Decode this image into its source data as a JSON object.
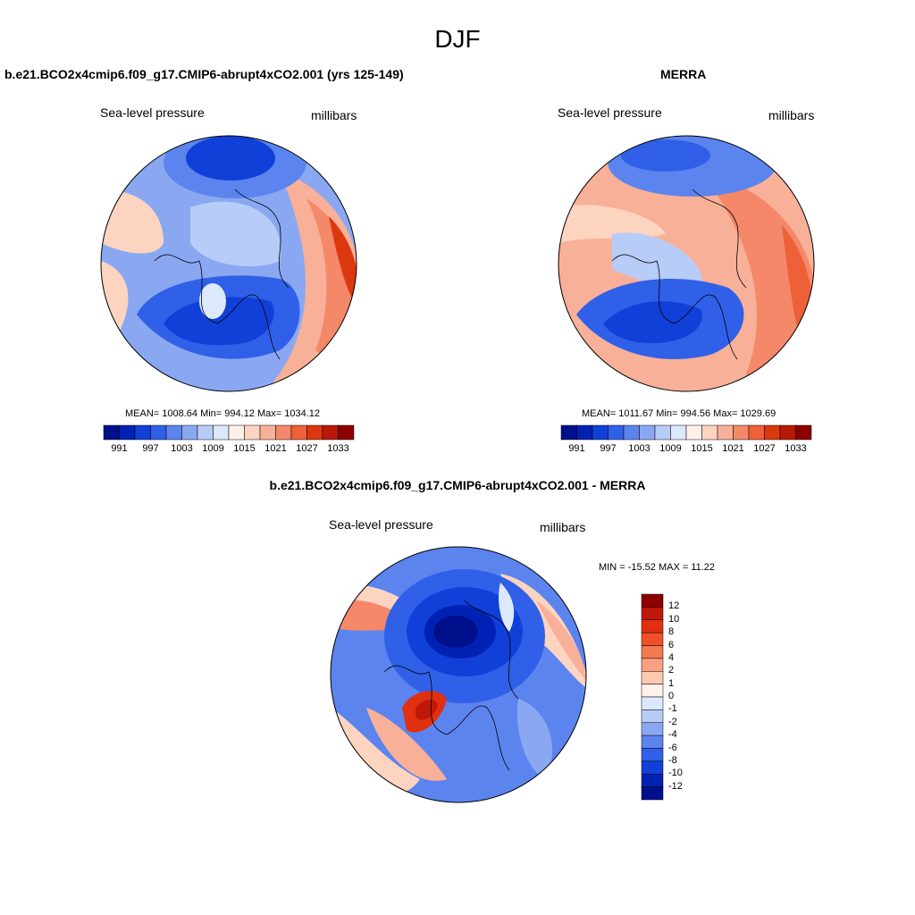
{
  "figure": {
    "title": "DJF"
  },
  "panels": [
    {
      "title": "b.e21.BCO2x4cmip6.f09_g17.CMIP6-abrupt4xCO2.001 (yrs 125-149)",
      "left_label": "Sea-level pressure",
      "right_label": "millibars",
      "stats": "MEAN= 1008.64  Min= 994.12  Max= 1034.12"
    },
    {
      "title": "MERRA",
      "left_label": "Sea-level pressure",
      "right_label": "millibars",
      "stats": "MEAN= 1011.67  Min= 994.56  Max= 1029.69"
    },
    {
      "title": "b.e21.BCO2x4cmip6.f09_g17.CMIP6-abrupt4xCO2.001 - MERRA",
      "left_label": "Sea-level pressure",
      "right_label": "millibars",
      "stats": "MIN = -15.52 MAX =  11.22"
    }
  ],
  "colorbar_abs": {
    "labels": [
      "991",
      "997",
      "1003",
      "1009",
      "1015",
      "1021",
      "1027",
      "1033"
    ],
    "colors": [
      "#00108c",
      "#0022b4",
      "#1040d8",
      "#3060e8",
      "#5c84ee",
      "#8aa8f2",
      "#b8ccf8",
      "#dce8fc",
      "#fff0e8",
      "#fcd4c0",
      "#f8b098",
      "#f48868",
      "#ee6038",
      "#dc3810",
      "#b81808",
      "#8c0000"
    ]
  },
  "colorbar_diff": {
    "labels": [
      "12",
      "10",
      "8",
      "6",
      "4",
      "2",
      "1",
      "0",
      "-1",
      "-2",
      "-4",
      "-6",
      "-8",
      "-10",
      "-12"
    ],
    "colors": [
      "#8c0000",
      "#c01808",
      "#e03010",
      "#f05028",
      "#f47850",
      "#f8a080",
      "#fcc8b0",
      "#fff0e8",
      "#dce8fc",
      "#b8ccf8",
      "#8aa8f2",
      "#5c84ee",
      "#3060e8",
      "#1040d8",
      "#0022b4",
      "#00108c"
    ]
  }
}
